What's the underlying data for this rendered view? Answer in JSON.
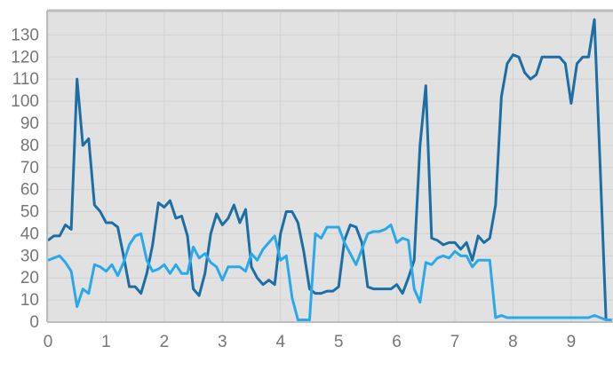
{
  "chart_data": {
    "type": "line",
    "x": [
      0,
      0.1,
      0.2,
      0.3,
      0.4,
      0.5,
      0.6,
      0.7,
      0.8,
      0.9,
      1,
      1.1,
      1.2,
      1.3,
      1.4,
      1.5,
      1.6,
      1.7,
      1.8,
      1.9,
      2,
      2.1,
      2.2,
      2.3,
      2.4,
      2.5,
      2.6,
      2.7,
      2.8,
      2.9,
      3,
      3.1,
      3.2,
      3.3,
      3.4,
      3.5,
      3.6,
      3.7,
      3.8,
      3.9,
      4,
      4.1,
      4.2,
      4.3,
      4.4,
      4.5,
      4.6,
      4.7,
      4.8,
      4.9,
      5,
      5.1,
      5.2,
      5.3,
      5.4,
      5.5,
      5.6,
      5.7,
      5.8,
      5.9,
      6,
      6.1,
      6.2,
      6.3,
      6.4,
      6.5,
      6.6,
      6.7,
      6.8,
      6.9,
      7,
      7.1,
      7.2,
      7.3,
      7.4,
      7.5,
      7.6,
      7.7,
      7.8,
      7.9,
      8,
      8.1,
      8.2,
      8.3,
      8.4,
      8.5,
      8.6,
      8.7,
      8.8,
      8.9,
      9,
      9.1,
      9.2,
      9.3,
      9.4,
      9.5,
      9.6,
      9.7
    ],
    "series": [
      {
        "color": "#1c6ea4",
        "values": [
          37,
          39,
          39,
          44,
          42,
          110,
          80,
          83,
          53,
          50,
          45,
          45,
          43,
          30,
          16,
          16,
          13,
          22,
          35,
          54,
          52,
          55,
          47,
          48,
          39,
          15,
          12,
          22,
          40,
          49,
          44,
          47,
          53,
          45,
          51,
          25,
          20,
          17,
          19,
          17,
          40,
          50,
          50,
          45,
          32,
          15,
          13,
          13,
          14,
          14,
          16,
          37,
          44,
          43,
          36,
          16,
          15,
          15,
          15,
          15,
          17,
          13,
          20,
          28,
          80,
          107,
          38,
          37,
          35,
          36,
          36,
          33,
          36,
          28,
          39,
          36,
          38,
          53,
          102,
          117,
          121,
          120,
          113,
          110,
          112,
          120,
          120,
          120,
          120,
          117,
          99,
          117,
          120,
          120,
          137,
          70,
          1,
          1
        ]
      },
      {
        "color": "#2aa9ea",
        "values": [
          28,
          29,
          30,
          27,
          23,
          7,
          15,
          13,
          26,
          25,
          23,
          26,
          21,
          27,
          35,
          39,
          40,
          28,
          23,
          24,
          26,
          22,
          26,
          22,
          22,
          34,
          29,
          31,
          27,
          25,
          19,
          25,
          25,
          25,
          23,
          31,
          28,
          33,
          36,
          39,
          28,
          30,
          11,
          1,
          1,
          1,
          40,
          38,
          43,
          43,
          43,
          36,
          31,
          26,
          33,
          40,
          41,
          41,
          42,
          44,
          36,
          38,
          37,
          15,
          9,
          27,
          26,
          29,
          30,
          29,
          32,
          30,
          30,
          25,
          28,
          28,
          28,
          2,
          3,
          2,
          2,
          2,
          2,
          2,
          2,
          2,
          2,
          2,
          2,
          2,
          2,
          2,
          2,
          2,
          3,
          2,
          1,
          1
        ]
      }
    ],
    "xlim": [
      0,
      9.72
    ],
    "ylim": [
      0,
      141
    ],
    "xticks": [
      0,
      1,
      2,
      3,
      4,
      5,
      6,
      7,
      8,
      9
    ],
    "yticks": [
      0,
      10,
      20,
      30,
      40,
      50,
      60,
      70,
      80,
      90,
      100,
      110,
      120,
      130
    ],
    "grid": true
  }
}
